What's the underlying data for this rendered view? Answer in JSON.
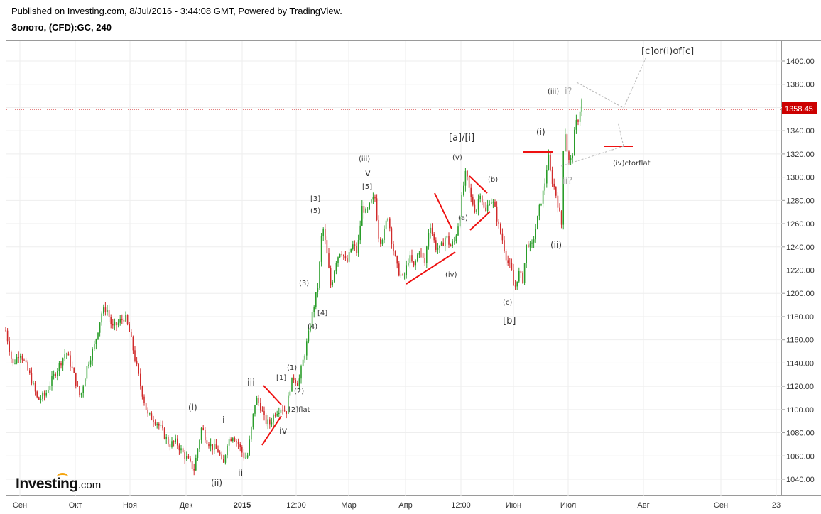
{
  "header": {
    "published": "Published on Investing.com, 8/Jul/2016 - 3:44:08 GMT, Powered by TradingView.",
    "symbol": "Золото, (CFD):GC, 240"
  },
  "logo": {
    "main": "Investing",
    "suffix": ".com"
  },
  "colors": {
    "up": "#2a9d2a",
    "down": "#d02a2a",
    "annotation": "#ee1111",
    "price_line": "#cc0000",
    "price_badge": "#cc0000"
  },
  "chart_data": {
    "type": "candlestick",
    "title": "Золото, (CFD):GC, 240",
    "ylim": [
      1030,
      1412
    ],
    "y_ticks": [
      "1040.00",
      "1060.00",
      "1080.00",
      "1100.00",
      "1120.00",
      "1140.00",
      "1160.00",
      "1180.00",
      "1200.00",
      "1220.00",
      "1240.00",
      "1260.00",
      "1280.00",
      "1300.00",
      "1320.00",
      "1340.00",
      "1360.00",
      "1380.00",
      "1400.00"
    ],
    "x_labels": [
      "Сен",
      "Окт",
      "Ноя",
      "Дек",
      "2015",
      "12:00",
      "Мар",
      "Апр",
      "12:00",
      "Июн",
      "Июл",
      "Авг",
      "Сен",
      "23"
    ],
    "current_price": "1358.45",
    "price_path": [
      [
        0,
        1168
      ],
      [
        10,
        1138
      ],
      [
        20,
        1150
      ],
      [
        35,
        1128
      ],
      [
        45,
        1108
      ],
      [
        55,
        1112
      ],
      [
        70,
        1132
      ],
      [
        85,
        1150
      ],
      [
        95,
        1132
      ],
      [
        105,
        1110
      ],
      [
        115,
        1138
      ],
      [
        125,
        1155
      ],
      [
        135,
        1183
      ],
      [
        142,
        1188
      ],
      [
        150,
        1170
      ],
      [
        160,
        1175
      ],
      [
        168,
        1180
      ],
      [
        175,
        1165
      ],
      [
        180,
        1150
      ],
      [
        190,
        1120
      ],
      [
        200,
        1095
      ],
      [
        212,
        1090
      ],
      [
        220,
        1082
      ],
      [
        230,
        1070
      ],
      [
        240,
        1072
      ],
      [
        250,
        1062
      ],
      [
        258,
        1055
      ],
      [
        265,
        1048
      ],
      [
        270,
        1065
      ],
      [
        276,
        1085
      ],
      [
        282,
        1075
      ],
      [
        290,
        1068
      ],
      [
        300,
        1064
      ],
      [
        306,
        1050
      ],
      [
        312,
        1072
      ],
      [
        320,
        1078
      ],
      [
        328,
        1070
      ],
      [
        335,
        1060
      ],
      [
        340,
        1058
      ],
      [
        345,
        1080
      ],
      [
        352,
        1110
      ],
      [
        358,
        1104
      ],
      [
        365,
        1090
      ],
      [
        372,
        1088
      ],
      [
        380,
        1098
      ],
      [
        388,
        1102
      ],
      [
        395,
        1098
      ],
      [
        400,
        1118
      ],
      [
        405,
        1128
      ],
      [
        412,
        1122
      ],
      [
        418,
        1140
      ],
      [
        425,
        1160
      ],
      [
        432,
        1183
      ],
      [
        440,
        1208
      ],
      [
        446,
        1260
      ],
      [
        452,
        1235
      ],
      [
        458,
        1205
      ],
      [
        465,
        1228
      ],
      [
        472,
        1238
      ],
      [
        480,
        1225
      ],
      [
        488,
        1242
      ],
      [
        495,
        1235
      ],
      [
        502,
        1275
      ],
      [
        508,
        1268
      ],
      [
        514,
        1278
      ],
      [
        520,
        1282
      ],
      [
        526,
        1245
      ],
      [
        532,
        1250
      ],
      [
        538,
        1268
      ],
      [
        545,
        1240
      ],
      [
        552,
        1220
      ],
      [
        560,
        1212
      ],
      [
        568,
        1232
      ],
      [
        575,
        1222
      ],
      [
        582,
        1238
      ],
      [
        590,
        1225
      ],
      [
        597,
        1262
      ],
      [
        605,
        1240
      ],
      [
        612,
        1238
      ],
      [
        620,
        1250
      ],
      [
        626,
        1240
      ],
      [
        632,
        1245
      ],
      [
        638,
        1262
      ],
      [
        644,
        1290
      ],
      [
        648,
        1304
      ],
      [
        655,
        1282
      ],
      [
        662,
        1270
      ],
      [
        668,
        1288
      ],
      [
        675,
        1268
      ],
      [
        682,
        1282
      ],
      [
        688,
        1275
      ],
      [
        694,
        1258
      ],
      [
        700,
        1245
      ],
      [
        706,
        1228
      ],
      [
        712,
        1220
      ],
      [
        716,
        1202
      ],
      [
        722,
        1218
      ],
      [
        728,
        1212
      ],
      [
        734,
        1245
      ],
      [
        740,
        1238
      ],
      [
        746,
        1255
      ],
      [
        752,
        1275
      ],
      [
        758,
        1290
      ],
      [
        764,
        1318
      ],
      [
        768,
        1300
      ],
      [
        772,
        1292
      ],
      [
        776,
        1282
      ],
      [
        780,
        1268
      ],
      [
        783,
        1258
      ],
      [
        786,
        1350
      ],
      [
        790,
        1325
      ],
      [
        794,
        1310
      ],
      [
        798,
        1320
      ],
      [
        802,
        1345
      ],
      [
        806,
        1350
      ],
      [
        810,
        1362
      ],
      [
        814,
        1375
      ],
      [
        818,
        1362
      ],
      [
        821,
        1358
      ]
    ]
  },
  "annotations": {
    "top_target": "[c]or(i)of[c]",
    "iv_ctorflat": "(iv)ctorflat",
    "paren_i_dec": "(i)",
    "paren_ii_dec": "(ii)",
    "roman_i": "i",
    "roman_ii": "ii",
    "roman_iii": "iii",
    "roman_iv": "iv",
    "br1": "[1]",
    "br2flat": "[2]flat",
    "p1": "(1)",
    "p2": "(2)",
    "p3": "(3)",
    "p4": "(4)",
    "br4": "[4]",
    "br3": "[3]",
    "p5": "(5)",
    "iii_small": "(iii)",
    "v_roman": "v",
    "br5": "[5]",
    "iv_small": "(iv)",
    "a_i": "[a]/[i]",
    "v_small": "(v)",
    "a_small": "(a)",
    "b_small": "(b)",
    "c_small": "(c)",
    "b_br": "[b]",
    "i_jun": "(i)",
    "ii_jun": "(ii)",
    "iii_jul": "(iii)",
    "i_q": "i?",
    "ii_q": "ii?"
  }
}
